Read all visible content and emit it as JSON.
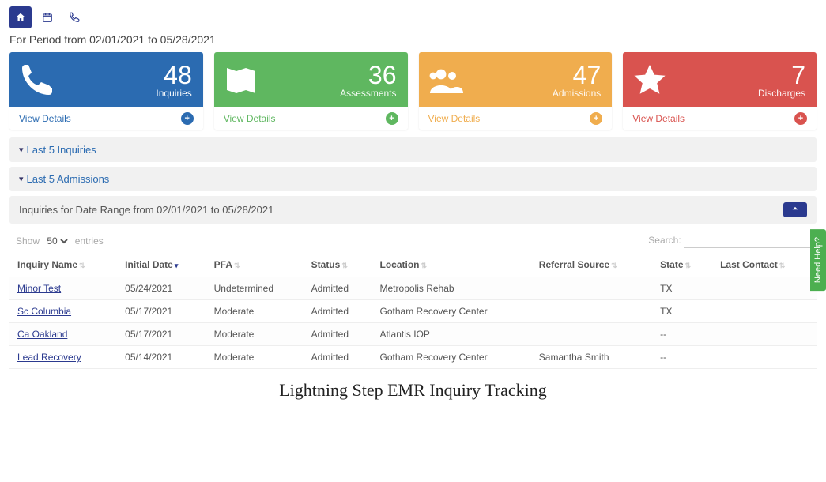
{
  "period_label": "For Period from 02/01/2021 to 05/28/2021",
  "stats": [
    {
      "value": 48,
      "label": "Inquiries",
      "color": "#2b6bb1",
      "link_label": "View Details",
      "link_color": "#2b6bb1",
      "circ_bg": "#2b6bb1"
    },
    {
      "value": 36,
      "label": "Assessments",
      "color": "#5fb760",
      "link_label": "View Details",
      "link_color": "#5fb760",
      "circ_bg": "#5fb760"
    },
    {
      "value": 47,
      "label": "Admissions",
      "color": "#f0ad4e",
      "link_label": "View Details",
      "link_color": "#f0ad4e",
      "circ_bg": "#f0ad4e"
    },
    {
      "value": 7,
      "label": "Discharges",
      "color": "#d9534f",
      "link_label": "View Details",
      "link_color": "#d9534f",
      "circ_bg": "#d9534f"
    }
  ],
  "panels": {
    "inquiries_label": "Last 5 Inquiries",
    "admissions_label": "Last 5 Admissions",
    "range_label": "Inquiries for Date Range from 02/01/2021 to 05/28/2021"
  },
  "table": {
    "show_label_prefix": "Show",
    "show_label_suffix": "entries",
    "page_size": "50",
    "search_label": "Search:",
    "columns": [
      "Inquiry Name",
      "Initial Date",
      "PFA",
      "Status",
      "Location",
      "Referral Source",
      "State",
      "Last Contact"
    ],
    "sorted_col_index": 1,
    "rows": [
      {
        "name": "Minor Test",
        "date": "05/24/2021",
        "pfa": "Undetermined",
        "status": "Admitted",
        "location": "Metropolis Rehab",
        "referral": "",
        "state": "TX",
        "last": ""
      },
      {
        "name": "Sc Columbia",
        "date": "05/17/2021",
        "pfa": "Moderate",
        "status": "Admitted",
        "location": "Gotham Recovery Center",
        "referral": "",
        "state": "TX",
        "last": ""
      },
      {
        "name": "Ca Oakland",
        "date": "05/17/2021",
        "pfa": "Moderate",
        "status": "Admitted",
        "location": "Atlantis IOP",
        "referral": "",
        "state": "--",
        "last": ""
      },
      {
        "name": "Lead Recovery",
        "date": "05/14/2021",
        "pfa": "Moderate",
        "status": "Admitted",
        "location": "Gotham Recovery Center",
        "referral": "Samantha Smith",
        "state": "--",
        "last": ""
      }
    ]
  },
  "caption": "Lightning Step EMR Inquiry Tracking",
  "need_help_label": "Need Help?",
  "colors": {
    "primary": "#2b3a8f",
    "panel_bg": "#f1f1f1"
  }
}
